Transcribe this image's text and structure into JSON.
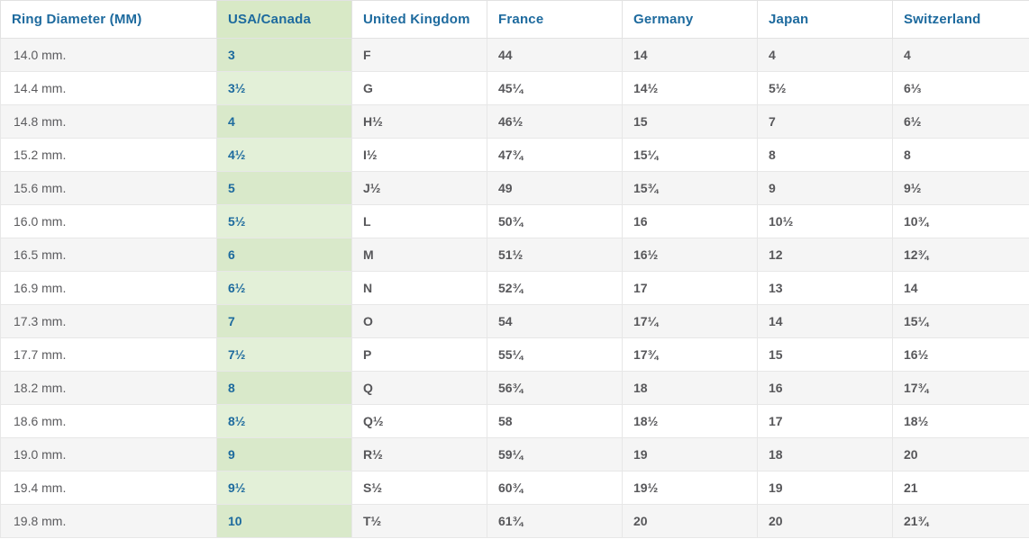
{
  "table": {
    "columns": [
      {
        "key": "diameter",
        "label": "Ring Diameter (MM)"
      },
      {
        "key": "usa-canada",
        "label": "USA/Canada"
      },
      {
        "key": "uk",
        "label": "United Kingdom"
      },
      {
        "key": "france",
        "label": "France"
      },
      {
        "key": "germany",
        "label": "Germany"
      },
      {
        "key": "japan",
        "label": "Japan"
      },
      {
        "key": "switzerland",
        "label": "Switzerland"
      }
    ],
    "rows": [
      {
        "cells": [
          "14.0 mm.",
          "3",
          "F",
          "44",
          "14",
          "4",
          "4"
        ]
      },
      {
        "cells": [
          "14.4 mm.",
          "3½",
          "G",
          "45¼",
          "14½",
          "5½",
          "6⅓"
        ]
      },
      {
        "cells": [
          "14.8 mm.",
          "4",
          "H½",
          "46½",
          "15",
          "7",
          "6½"
        ]
      },
      {
        "cells": [
          "15.2 mm.",
          "4½",
          "I½",
          "47¾",
          "15¼",
          "8",
          "8"
        ]
      },
      {
        "cells": [
          "15.6 mm.",
          "5",
          "J½",
          "49",
          "15¾",
          "9",
          "9½"
        ]
      },
      {
        "cells": [
          "16.0 mm.",
          "5½",
          "L",
          "50¾",
          "16",
          "10½",
          "10¾"
        ]
      },
      {
        "cells": [
          "16.5 mm.",
          "6",
          "M",
          "51½",
          "16½",
          "12",
          "12¾"
        ]
      },
      {
        "cells": [
          "16.9 mm.",
          "6½",
          "N",
          "52¾",
          "17",
          "13",
          "14"
        ]
      },
      {
        "cells": [
          "17.3 mm.",
          "7",
          "O",
          "54",
          "17¼",
          "14",
          "15¼"
        ]
      },
      {
        "cells": [
          "17.7 mm.",
          "7½",
          "P",
          "55¼",
          "17¾",
          "15",
          "16½"
        ]
      },
      {
        "cells": [
          "18.2 mm.",
          "8",
          "Q",
          "56¾",
          "18",
          "16",
          "17¾"
        ]
      },
      {
        "cells": [
          "18.6 mm.",
          "8½",
          "Q½",
          "58",
          "18½",
          "17",
          "18½"
        ]
      },
      {
        "cells": [
          "19.0 mm.",
          "9",
          "R½",
          "59¼",
          "19",
          "18",
          "20"
        ]
      },
      {
        "cells": [
          "19.4 mm.",
          "9½",
          "S½",
          "60¾",
          "19½",
          "19",
          "21"
        ]
      },
      {
        "cells": [
          "19.8 mm.",
          "10",
          "T½",
          "61¾",
          "20",
          "20",
          "21¾"
        ]
      }
    ]
  },
  "colors": {
    "header_text": "#1d6a9e",
    "body_text": "#57575a",
    "stripe_gray": "#f5f5f5",
    "border": "#e2e2e2",
    "green_header": "#d8e9c6",
    "green_cell": "#e3f0d8",
    "green_cell_striped": "#d9e9ca"
  }
}
